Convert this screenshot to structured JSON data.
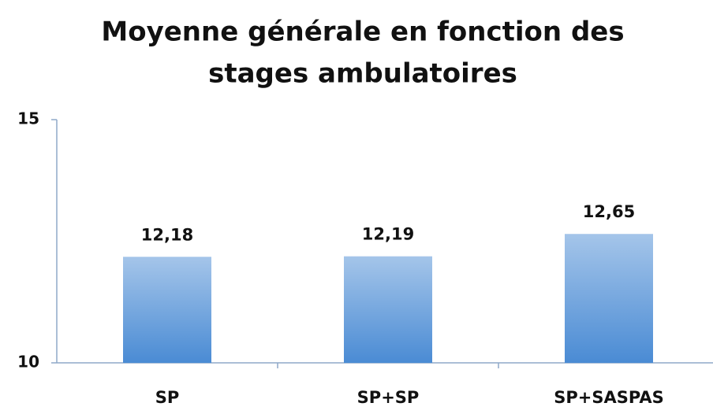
{
  "chart_data": {
    "type": "bar",
    "title": [
      "Moyenne générale en fonction des",
      "stages ambulatoires"
    ],
    "categories": [
      "SP",
      "SP+SP",
      "SP+SASPAS"
    ],
    "values": [
      12.18,
      12.19,
      12.65
    ],
    "value_labels": [
      "12,18",
      "12,19",
      "12,65"
    ],
    "color": "#4a8bd4",
    "ylim": [
      10,
      15
    ],
    "yticks": [
      10,
      15
    ],
    "grid": false
  }
}
